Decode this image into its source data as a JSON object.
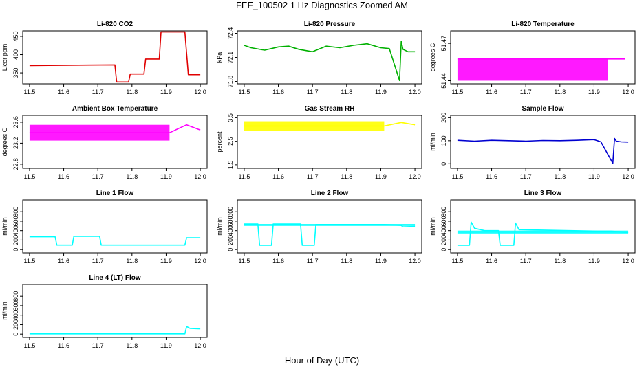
{
  "figure": {
    "title": "FEF_100502  1 Hz Diagnostics Zoomed AM",
    "xlabel": "Hour of Day (UTC)"
  },
  "chart_data": [
    {
      "type": "line",
      "title": "Li-820 CO2",
      "ylabel": "Licor ppm",
      "color": "#e00000",
      "xlim": [
        11.48,
        12.02
      ],
      "ylim": [
        320,
        465
      ],
      "xticks": [
        "11.5",
        "11.6",
        "11.7",
        "11.8",
        "11.9",
        "12.0"
      ],
      "yticks": [
        "350",
        "400",
        "450"
      ],
      "x": [
        11.5,
        11.75,
        11.755,
        11.79,
        11.795,
        11.835,
        11.84,
        11.88,
        11.885,
        11.955,
        11.965,
        12.0
      ],
      "y": [
        370,
        372,
        325,
        325,
        347,
        347,
        388,
        388,
        462,
        462,
        345,
        345
      ]
    },
    {
      "type": "line",
      "title": "Li-820 Pressure",
      "ylabel": "kPa",
      "color": "#00b000",
      "xlim": [
        11.48,
        12.02
      ],
      "ylim": [
        71.77,
        72.43
      ],
      "xticks": [
        "11.5",
        "11.6",
        "11.7",
        "11.8",
        "11.9",
        "12.0"
      ],
      "yticks": [
        "71.8",
        "72.1",
        "72.4"
      ],
      "x": [
        11.5,
        11.52,
        11.56,
        11.6,
        11.63,
        11.66,
        11.7,
        11.74,
        11.78,
        11.82,
        11.86,
        11.9,
        11.925,
        11.955,
        11.96,
        11.965,
        11.98,
        12.0
      ],
      "y": [
        72.25,
        72.22,
        72.19,
        72.23,
        72.24,
        72.2,
        72.17,
        72.24,
        72.22,
        72.25,
        72.27,
        72.22,
        72.21,
        71.81,
        72.3,
        72.2,
        72.17,
        72.17
      ]
    },
    {
      "type": "line",
      "title": "Li-820 Temperature",
      "ylabel": "degrees C",
      "color": "#ff00ff",
      "xlim": [
        11.48,
        12.02
      ],
      "ylim": [
        51.4375,
        51.48
      ],
      "xticks": [
        "11.5",
        "11.6",
        "11.7",
        "11.8",
        "11.9",
        "12.0"
      ],
      "yticks": [
        "51.44",
        "51.47"
      ],
      "x": [
        11.5,
        11.94,
        11.99
      ],
      "y": [
        51.4575,
        51.4575,
        51.4575
      ],
      "band": [
        51.44,
        51.4575
      ]
    },
    {
      "type": "line",
      "title": "Ambient Box Temperature",
      "ylabel": "degrees C",
      "color": "#ff00ff",
      "xlim": [
        11.48,
        12.02
      ],
      "ylim": [
        22.72,
        23.73
      ],
      "xticks": [
        "11.5",
        "11.6",
        "11.7",
        "11.8",
        "11.9",
        "12.0"
      ],
      "yticks": [
        "22.8",
        "23.2",
        "23.6"
      ],
      "x": [
        11.5,
        11.91,
        11.96,
        12.0
      ],
      "y": [
        23.4,
        23.4,
        23.55,
        23.45
      ],
      "band": [
        23.25,
        23.55
      ]
    },
    {
      "type": "line",
      "title": "Gas Stream RH",
      "ylabel": "percent",
      "color": "#ffff00",
      "xlim": [
        11.48,
        12.02
      ],
      "ylim": [
        1.35,
        3.6
      ],
      "xticks": [
        "11.5",
        "11.6",
        "11.7",
        "11.8",
        "11.9",
        "12.0"
      ],
      "yticks": [
        "1.5",
        "2.5",
        "3.5"
      ],
      "x": [
        11.5,
        11.91,
        11.96,
        12.0
      ],
      "y": [
        3.15,
        3.15,
        3.3,
        3.2
      ],
      "band": [
        2.95,
        3.35
      ]
    },
    {
      "type": "line",
      "title": "Sample Flow",
      "ylabel": "ml/min",
      "color": "#0000d0",
      "xlim": [
        11.48,
        12.02
      ],
      "ylim": [
        -20,
        210
      ],
      "xticks": [
        "11.5",
        "11.6",
        "11.7",
        "11.8",
        "11.9",
        "12.0"
      ],
      "yticks": [
        "0",
        "100",
        "200"
      ],
      "x": [
        11.5,
        11.55,
        11.6,
        11.65,
        11.7,
        11.75,
        11.8,
        11.85,
        11.9,
        11.92,
        11.955,
        11.96,
        11.965,
        11.98,
        12.0
      ],
      "y": [
        102,
        98,
        102,
        100,
        98,
        101,
        100,
        102,
        105,
        95,
        2,
        110,
        98,
        95,
        94
      ]
    },
    {
      "type": "line",
      "title": "Line 1 Flow",
      "ylabel": "ml/min",
      "color": "#00ffff",
      "xlim": [
        11.48,
        12.02
      ],
      "ylim": [
        -70,
        1050
      ],
      "xticks": [
        "11.5",
        "11.6",
        "11.7",
        "11.8",
        "11.9",
        "12.0"
      ],
      "yticks": [
        "0",
        "200",
        "400",
        "600",
        "800"
      ],
      "x": [
        11.5,
        11.575,
        11.58,
        11.625,
        11.63,
        11.705,
        11.71,
        11.955,
        11.96,
        12.0
      ],
      "y": [
        270,
        270,
        95,
        95,
        280,
        280,
        95,
        95,
        250,
        250
      ]
    },
    {
      "type": "line",
      "title": "Line 2 Flow",
      "ylabel": "ml/min",
      "color": "#00ffff",
      "xlim": [
        11.48,
        12.02
      ],
      "ylim": [
        -70,
        1050
      ],
      "xticks": [
        "11.5",
        "11.6",
        "11.7",
        "11.8",
        "11.9",
        "12.0"
      ],
      "yticks": [
        "0",
        "200",
        "400",
        "600",
        "800"
      ],
      "x": [
        11.5,
        11.54,
        11.545,
        11.58,
        11.585,
        11.665,
        11.67,
        11.705,
        11.71,
        11.91,
        11.96,
        11.965,
        12.0
      ],
      "y": [
        540,
        540,
        90,
        90,
        540,
        540,
        90,
        90,
        530,
        530,
        510,
        480,
        490
      ],
      "band": [
        500,
        540
      ]
    },
    {
      "type": "line",
      "title": "Line 3 Flow",
      "ylabel": "ml/min",
      "color": "#00ffff",
      "xlim": [
        11.48,
        12.02
      ],
      "ylim": [
        -70,
        1050
      ],
      "xticks": [
        "11.5",
        "11.6",
        "11.7",
        "11.8",
        "11.9",
        "12.0"
      ],
      "yticks": [
        "0",
        "200",
        "400",
        "600",
        "800"
      ],
      "x": [
        11.5,
        11.535,
        11.54,
        11.55,
        11.58,
        11.62,
        11.625,
        11.665,
        11.67,
        11.68,
        11.91,
        11.95,
        12.0
      ],
      "y": [
        90,
        90,
        580,
        450,
        400,
        400,
        90,
        90,
        560,
        420,
        390,
        390,
        360
      ],
      "band": [
        340,
        400
      ]
    },
    {
      "type": "line",
      "title": "Line 4 (LT) Flow",
      "ylabel": "ml/min",
      "color": "#00ffff",
      "xlim": [
        11.48,
        12.02
      ],
      "ylim": [
        -70,
        1050
      ],
      "xticks": [
        "11.5",
        "11.6",
        "11.7",
        "11.8",
        "11.9",
        "12.0"
      ],
      "yticks": [
        "0",
        "200",
        "400",
        "600",
        "800"
      ],
      "x": [
        11.5,
        11.955,
        11.96,
        11.97,
        12.0
      ],
      "y": [
        5,
        5,
        160,
        120,
        110
      ]
    }
  ]
}
